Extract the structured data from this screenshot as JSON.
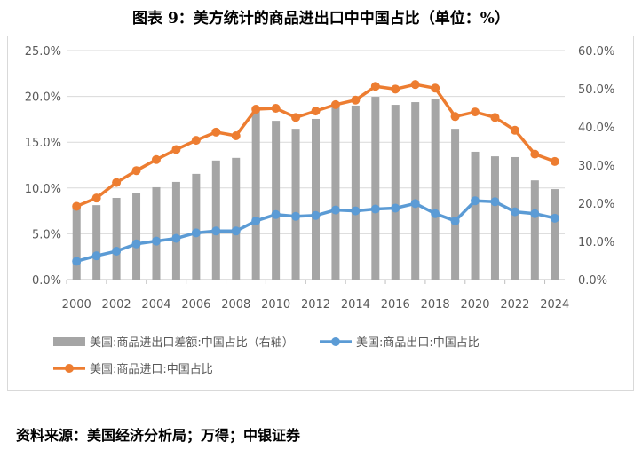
{
  "title": "图表 9：美方统计的商品进出口中中国占比（单位：%）",
  "footer": "资料来源：美国经济分析局；万得；中银证券",
  "chart_data": {
    "type": "bar+line",
    "categories": [
      "2000",
      "2001",
      "2002",
      "2003",
      "2004",
      "2005",
      "2006",
      "2007",
      "2008",
      "2009",
      "2010",
      "2011",
      "2012",
      "2013",
      "2014",
      "2015",
      "2016",
      "2017",
      "2018",
      "2019",
      "2020",
      "2021",
      "2022",
      "2023",
      "2024"
    ],
    "x_tick_labels": [
      "2000",
      "2002",
      "2004",
      "2006",
      "2008",
      "2010",
      "2012",
      "2014",
      "2016",
      "2018",
      "2020",
      "2022",
      "2024"
    ],
    "left_axis": {
      "ylim": [
        0,
        25
      ],
      "ticks": [
        "0.0%",
        "5.0%",
        "10.0%",
        "15.0%",
        "20.0%",
        "25.0%"
      ]
    },
    "right_axis": {
      "ylim": [
        0,
        60
      ],
      "ticks": [
        "0.0%",
        "10.0%",
        "20.0%",
        "30.0%",
        "40.0%",
        "50.0%",
        "60.0%"
      ]
    },
    "grid": true,
    "legend_position": "bottom",
    "series": [
      {
        "name": "美国:商品进出口差额:中国占比（右轴）",
        "type": "bar",
        "axis": "right",
        "color": "#a5a5a5",
        "values": [
          19.3,
          19.5,
          21.4,
          22.6,
          24.2,
          25.6,
          27.7,
          31.2,
          31.9,
          44.2,
          41.6,
          39.5,
          42.1,
          45.3,
          45.6,
          47.9,
          45.8,
          46.5,
          47.2,
          39.5,
          33.5,
          32.3,
          32.1,
          26.0,
          23.7
        ]
      },
      {
        "name": "美国:商品出口:中国占比",
        "type": "line",
        "axis": "left",
        "color": "#5b9bd5",
        "values": [
          2.0,
          2.6,
          3.1,
          3.9,
          4.2,
          4.5,
          5.1,
          5.3,
          5.3,
          6.4,
          7.1,
          6.9,
          7.0,
          7.6,
          7.5,
          7.7,
          7.8,
          8.3,
          7.2,
          6.4,
          8.6,
          8.5,
          7.4,
          7.2,
          6.7
        ]
      },
      {
        "name": "美国:商品进口:中国占比",
        "type": "line",
        "axis": "left",
        "color": "#ed7d31",
        "values": [
          8.0,
          8.9,
          10.6,
          11.9,
          13.1,
          14.2,
          15.2,
          16.1,
          15.7,
          18.6,
          18.7,
          17.7,
          18.4,
          19.1,
          19.6,
          21.1,
          20.8,
          21.3,
          20.9,
          17.8,
          18.3,
          17.7,
          16.3,
          13.7,
          12.9
        ]
      }
    ]
  }
}
